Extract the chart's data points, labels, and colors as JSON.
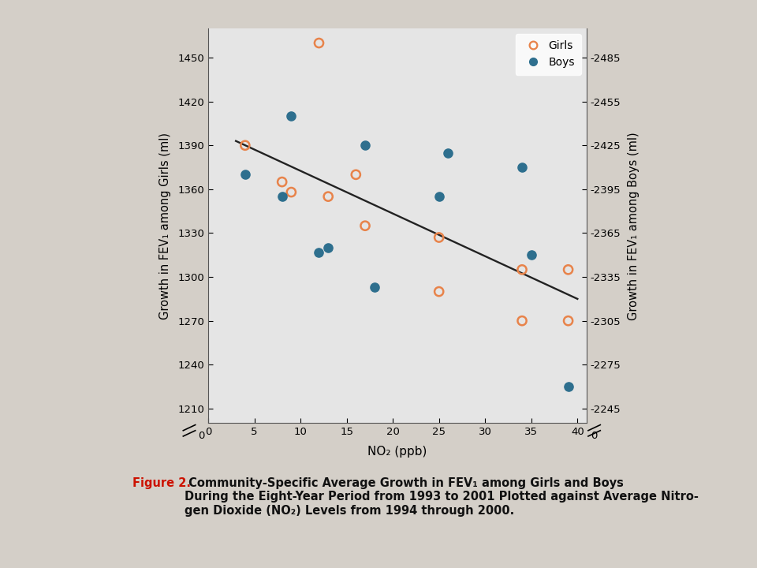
{
  "girls_x": [
    4,
    8,
    9,
    12,
    13,
    16,
    17,
    25,
    25,
    34,
    34,
    39,
    39
  ],
  "girls_y": [
    1390,
    1365,
    1358,
    1460,
    1355,
    1370,
    1335,
    1327,
    1290,
    1305,
    1270,
    1270,
    1305
  ],
  "boys_x": [
    4,
    8,
    9,
    12,
    13,
    17,
    18,
    25,
    26,
    34,
    35,
    39
  ],
  "boys_y": [
    1370,
    1355,
    1410,
    1317,
    1320,
    1390,
    1293,
    1355,
    1385,
    1375,
    1315,
    1225
  ],
  "line_x": [
    3,
    40
  ],
  "line_y": [
    1393,
    1285
  ],
  "girls_color": "#E8834A",
  "boys_color": "#2E6F8E",
  "line_color": "#222222",
  "left_ylabel": "Growth in FEV₁ among Girls (ml)",
  "right_ylabel": "Growth in FEV₁ among Boys (ml)",
  "xlabel": "NO₂ (ppb)",
  "left_yticks": [
    1210,
    1240,
    1270,
    1300,
    1330,
    1360,
    1390,
    1420,
    1450
  ],
  "right_ytick_labels": [
    "-2245",
    "-2275",
    "-2305",
    "-2335",
    "-2365",
    "-2395",
    "-2425",
    "-2455",
    "-2485"
  ],
  "xlim": [
    0,
    41
  ],
  "ylim_plot": [
    1200,
    1470
  ],
  "xticks": [
    0,
    5,
    10,
    15,
    20,
    25,
    30,
    35,
    40
  ],
  "plot_bg": "#e5e5e5",
  "outer_bg": "#f5f2ed",
  "caption_bg": "#ede8e0",
  "figure_bg": "#d4cfc8",
  "caption_label": "Figure 2.",
  "caption_rest": " Community-Specific Average Growth in FEV₁ among Girls and Boys\nDuring the Eight-Year Period from 1993 to 2001 Plotted against Average Nitro-\ngen Dioxide (NO₂) Levels from 1994 through 2000.",
  "caption_red": "#cc1100",
  "caption_black": "#111111"
}
